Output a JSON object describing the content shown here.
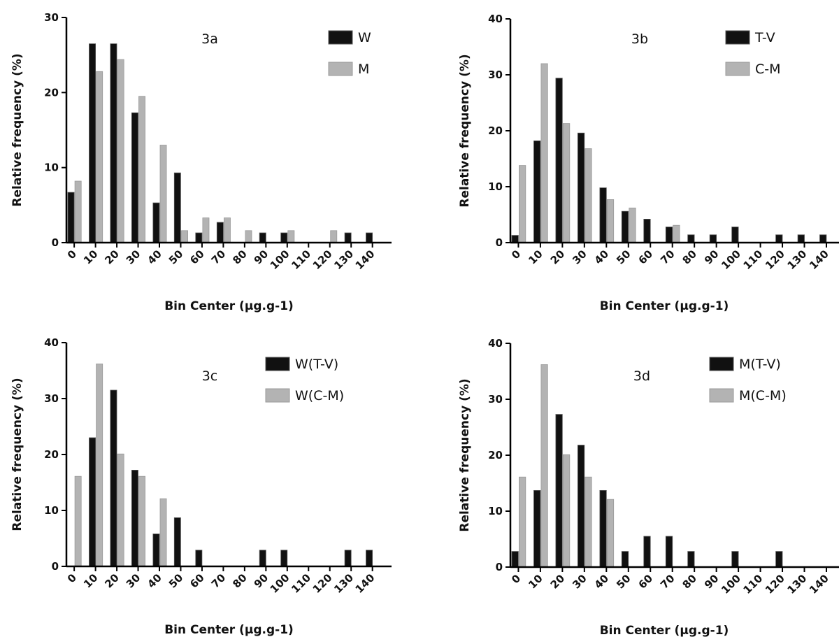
{
  "chart_data": [
    {
      "type": "bar",
      "panel": "3a",
      "xlabel": "Bin Center (µg.g-1)",
      "ylabel": "Relative frequency (%)",
      "ylim": [
        0,
        30
      ],
      "yticks": [
        0,
        10,
        20,
        30
      ],
      "categories": [
        "0",
        "10",
        "20",
        "30",
        "40",
        "50",
        "60",
        "70",
        "80",
        "90",
        "100",
        "110",
        "120",
        "130",
        "140"
      ],
      "legend_position": "top-right",
      "grid": false,
      "series": [
        {
          "name": "W",
          "color": "#111111",
          "values": [
            6.7,
            26.5,
            26.5,
            17.3,
            5.3,
            9.3,
            1.3,
            2.7,
            0,
            1.3,
            1.3,
            0,
            0,
            1.3,
            1.3
          ]
        },
        {
          "name": "M",
          "color": "#b3b3b3",
          "values": [
            8.2,
            22.8,
            24.4,
            19.5,
            13.0,
            1.6,
            3.3,
            3.3,
            1.6,
            0,
            1.6,
            0,
            1.6,
            0,
            0
          ]
        }
      ]
    },
    {
      "type": "bar",
      "panel": "3b",
      "xlabel": "Bin Center (µg.g-1)",
      "ylabel": "Relative frequency (%)",
      "ylim": [
        0,
        40
      ],
      "yticks": [
        0,
        10,
        20,
        30,
        40
      ],
      "categories": [
        "0",
        "10",
        "20",
        "30",
        "40",
        "50",
        "60",
        "70",
        "80",
        "90",
        "100",
        "110",
        "120",
        "130",
        "140"
      ],
      "legend_position": "top-right",
      "grid": false,
      "series": [
        {
          "name": "T-V",
          "color": "#111111",
          "values": [
            1.3,
            18.2,
            29.4,
            19.6,
            9.8,
            5.6,
            4.2,
            2.8,
            1.4,
            1.4,
            2.8,
            0,
            1.4,
            1.4,
            1.4
          ]
        },
        {
          "name": "C-M",
          "color": "#b3b3b3",
          "values": [
            13.8,
            32.0,
            21.3,
            16.8,
            7.7,
            6.2,
            0,
            3.1,
            0,
            0,
            0,
            0,
            0,
            0,
            0
          ]
        }
      ]
    },
    {
      "type": "bar",
      "panel": "3c",
      "xlabel": "Bin Center (µg.g-1)",
      "ylabel": "Relative frequency (%)",
      "ylim": [
        0,
        40
      ],
      "yticks": [
        0,
        10,
        20,
        30,
        40
      ],
      "categories": [
        "0",
        "10",
        "20",
        "30",
        "40",
        "50",
        "60",
        "70",
        "80",
        "90",
        "100",
        "110",
        "120",
        "130",
        "140"
      ],
      "legend_position": "top-right",
      "grid": false,
      "series": [
        {
          "name": "W(T-V)",
          "color": "#111111",
          "values": [
            0,
            23.0,
            31.5,
            17.2,
            5.8,
            8.7,
            2.9,
            0,
            0,
            2.9,
            2.9,
            0,
            0,
            2.9,
            2.9
          ]
        },
        {
          "name": "W(C-M)",
          "color": "#b3b3b3",
          "values": [
            16.1,
            36.2,
            20.1,
            16.1,
            12.1,
            0,
            0,
            0,
            0,
            0,
            0,
            0,
            0,
            0,
            0
          ]
        }
      ]
    },
    {
      "type": "bar",
      "panel": "3d",
      "xlabel": "Bin Center (µg.g-1)",
      "ylabel": "Relative frequency (%)",
      "ylim": [
        0,
        40
      ],
      "yticks": [
        0,
        10,
        20,
        30,
        40
      ],
      "categories": [
        "0",
        "10",
        "20",
        "30",
        "40",
        "50",
        "60",
        "70",
        "80",
        "90",
        "100",
        "110",
        "120",
        "130",
        "140"
      ],
      "legend_position": "top-right",
      "grid": false,
      "series": [
        {
          "name": "M(T-V)",
          "color": "#111111",
          "values": [
            2.8,
            13.7,
            27.3,
            21.8,
            13.7,
            2.8,
            5.5,
            5.5,
            2.8,
            0,
            2.8,
            0,
            2.8,
            0,
            0
          ]
        },
        {
          "name": "M(C-M)",
          "color": "#b3b3b3",
          "values": [
            16.1,
            36.2,
            20.1,
            16.1,
            12.1,
            0,
            0,
            0,
            0,
            0,
            0,
            0,
            0,
            0,
            0
          ]
        }
      ]
    }
  ]
}
